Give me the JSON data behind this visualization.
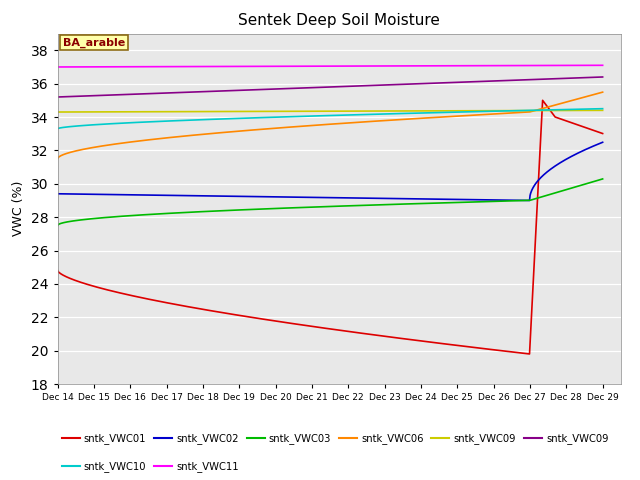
{
  "title": "Sentek Deep Soil Moisture",
  "ylabel": "VWC (%)",
  "annotation": "BA_arable",
  "ylim": [
    18,
    39
  ],
  "yticks": [
    18,
    20,
    22,
    24,
    26,
    28,
    30,
    32,
    34,
    36,
    38
  ],
  "background_color": "#e8e8e8",
  "legend_row1": [
    {
      "color": "#dd0000",
      "label": "sntk_VWC01"
    },
    {
      "color": "#0000cc",
      "label": "sntk_VWC02"
    },
    {
      "color": "#00bb00",
      "label": "sntk_VWC03"
    },
    {
      "color": "#ff8800",
      "label": "sntk_VWC06"
    },
    {
      "color": "#cccc00",
      "label": "sntk_VWC09"
    },
    {
      "color": "#880088",
      "label": "sntk_VWC09"
    }
  ],
  "legend_row2": [
    {
      "color": "#00cccc",
      "label": "sntk_VWC10"
    },
    {
      "color": "#ff00ff",
      "label": "sntk_VWC11"
    }
  ]
}
